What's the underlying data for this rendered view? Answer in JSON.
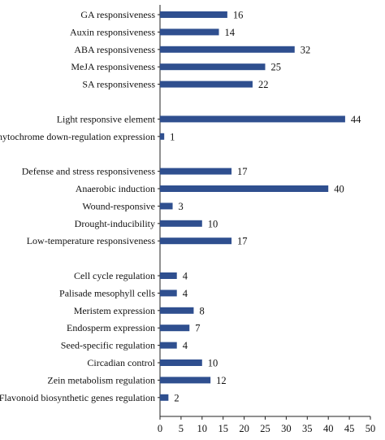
{
  "chart_data": {
    "type": "bar",
    "orientation": "horizontal",
    "title": "",
    "xlabel": "",
    "ylabel": "",
    "xlim": [
      0,
      50
    ],
    "xticks": [
      0,
      5,
      10,
      15,
      20,
      25,
      30,
      35,
      40,
      45,
      50
    ],
    "grid": false,
    "legend": "none",
    "bar_color": "#2f4f8f",
    "groups": [
      {
        "categories": [
          "GA responsiveness",
          "Auxin responsiveness",
          "ABA responsiveness",
          "MeJA responsiveness",
          "SA responsiveness"
        ],
        "values": [
          16,
          14,
          32,
          25,
          22
        ]
      },
      {
        "categories": [
          "Light responsive element",
          "Phytochrome down-regulation expression"
        ],
        "values": [
          44,
          1
        ]
      },
      {
        "categories": [
          "Defense and stress responsiveness",
          "Anaerobic induction",
          "Wound-responsive",
          "Drought-inducibility",
          "Low-temperature responsiveness"
        ],
        "values": [
          17,
          40,
          3,
          10,
          17
        ]
      },
      {
        "categories": [
          "Cell cycle regulation",
          "Palisade mesophyll cells",
          "Meristem expression",
          "Endosperm expression",
          "Seed-specific regulation",
          "Circadian control",
          "Zein metabolism regulation",
          "Flavonoid biosynthetic genes regulation"
        ],
        "values": [
          4,
          4,
          8,
          7,
          4,
          10,
          12,
          2
        ]
      }
    ]
  }
}
